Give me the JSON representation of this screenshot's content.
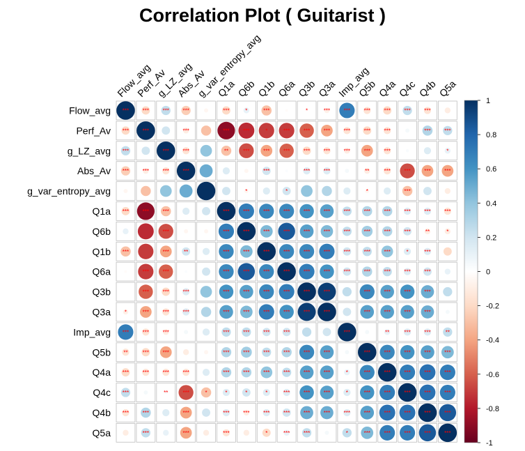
{
  "chart_data": {
    "type": "heatmap",
    "title": "Correlation Plot ( Guitarist )",
    "variables": [
      "Flow_avg",
      "Perf_Av",
      "g_LZ_avg",
      "Abs_Av",
      "g_var_entropy_avg",
      "Q1a",
      "Q6b",
      "Q1b",
      "Q6a",
      "Q3b",
      "Q3a",
      "Imp_avg",
      "Q5b",
      "Q4a",
      "Q4c",
      "Q4b",
      "Q5a"
    ],
    "matrix": [
      [
        1.0,
        -0.2,
        0.25,
        -0.25,
        -0.05,
        -0.2,
        0.1,
        -0.3,
        -0.02,
        0.0,
        -0.08,
        0.7,
        -0.15,
        -0.2,
        0.25,
        -0.15,
        -0.1
      ],
      [
        -0.2,
        1.0,
        0.2,
        -0.1,
        -0.3,
        -0.9,
        -0.75,
        -0.7,
        -0.7,
        -0.6,
        -0.4,
        -0.15,
        -0.2,
        -0.15,
        0.05,
        0.3,
        0.25
      ],
      [
        0.25,
        0.2,
        1.0,
        -0.15,
        0.4,
        -0.3,
        -0.65,
        -0.4,
        -0.6,
        -0.2,
        -0.15,
        -0.1,
        -0.4,
        -0.15,
        0.03,
        0.15,
        0.1
      ],
      [
        -0.25,
        -0.1,
        -0.15,
        1.0,
        0.5,
        0.15,
        -0.05,
        0.2,
        0.02,
        0.15,
        0.15,
        0.05,
        -0.1,
        -0.15,
        -0.65,
        -0.4,
        -0.4
      ],
      [
        -0.05,
        -0.3,
        0.4,
        0.5,
        1.0,
        0.2,
        -0.05,
        0.15,
        0.2,
        0.4,
        0.3,
        0.15,
        -0.05,
        0.15,
        -0.3,
        0.2,
        -0.1
      ],
      [
        -0.2,
        -0.9,
        -0.3,
        0.15,
        0.2,
        1.0,
        0.7,
        0.65,
        0.65,
        0.6,
        0.55,
        0.25,
        0.3,
        0.3,
        0.15,
        0.15,
        -0.15
      ],
      [
        0.1,
        -0.75,
        -0.65,
        -0.05,
        -0.05,
        0.7,
        1.0,
        0.45,
        0.85,
        0.55,
        0.45,
        0.25,
        0.35,
        0.3,
        0.2,
        -0.1,
        -0.1
      ],
      [
        -0.3,
        -0.7,
        -0.4,
        0.2,
        0.15,
        0.65,
        0.45,
        1.0,
        0.65,
        0.65,
        0.7,
        0.2,
        0.25,
        0.4,
        0.15,
        0.15,
        -0.2
      ],
      [
        -0.02,
        -0.7,
        -0.6,
        0.02,
        0.2,
        0.65,
        0.85,
        0.65,
        1.0,
        0.7,
        0.6,
        0.2,
        0.3,
        0.25,
        0.15,
        0.2,
        0.1
      ],
      [
        0.0,
        -0.6,
        -0.2,
        0.15,
        0.4,
        0.6,
        0.55,
        0.65,
        0.7,
        1.0,
        0.95,
        0.25,
        0.65,
        0.55,
        0.6,
        0.5,
        0.25
      ],
      [
        -0.08,
        -0.4,
        -0.15,
        0.15,
        0.3,
        0.55,
        0.45,
        0.7,
        0.6,
        0.95,
        1.0,
        0.2,
        0.55,
        0.55,
        0.55,
        0.5,
        0.05
      ],
      [
        0.7,
        -0.15,
        -0.1,
        0.05,
        0.15,
        0.25,
        0.25,
        0.2,
        0.2,
        0.25,
        0.2,
        1.0,
        0.05,
        0.1,
        0.15,
        0.15,
        0.25
      ],
      [
        -0.15,
        -0.2,
        -0.4,
        -0.1,
        -0.05,
        0.3,
        0.35,
        0.25,
        0.3,
        0.65,
        0.55,
        0.05,
        1.0,
        0.65,
        0.6,
        0.55,
        0.45
      ],
      [
        -0.2,
        -0.15,
        -0.15,
        -0.15,
        0.15,
        0.3,
        0.3,
        0.4,
        0.25,
        0.55,
        0.55,
        0.1,
        0.65,
        1.0,
        0.7,
        0.75,
        0.7
      ],
      [
        0.25,
        0.05,
        0.03,
        -0.65,
        -0.3,
        0.15,
        0.2,
        0.15,
        0.15,
        0.6,
        0.55,
        0.15,
        0.6,
        0.7,
        1.0,
        0.75,
        0.7
      ],
      [
        -0.15,
        0.3,
        0.15,
        -0.4,
        0.2,
        0.15,
        -0.1,
        0.15,
        0.2,
        0.5,
        0.5,
        0.15,
        0.55,
        0.75,
        0.75,
        1.0,
        0.85
      ],
      [
        -0.1,
        0.25,
        0.1,
        -0.4,
        -0.1,
        -0.15,
        -0.1,
        -0.2,
        0.1,
        0.25,
        0.05,
        0.25,
        0.45,
        0.7,
        0.7,
        0.85,
        1.0
      ]
    ],
    "significance": [
      [
        "***",
        "***",
        "***",
        "***",
        "",
        "***",
        "*",
        "***",
        "",
        "*",
        "***",
        "***",
        "***",
        "***",
        "***",
        "***",
        ""
      ],
      [
        "***",
        "***",
        "",
        "***",
        "",
        "***",
        "***",
        "*",
        "***",
        "***",
        "***",
        "***",
        "***",
        "***",
        "",
        "***",
        "***"
      ],
      [
        "***",
        "",
        "***",
        "***",
        "",
        "**",
        "***",
        "***",
        "***",
        "***",
        "***",
        "***",
        "***",
        "***",
        "",
        "",
        "*"
      ],
      [
        "***",
        "***",
        "***",
        "***",
        "",
        "",
        "",
        "***",
        "",
        "***",
        "***",
        "",
        "**",
        "***",
        "***",
        "***",
        "***"
      ],
      [
        "",
        "",
        "",
        "",
        "",
        "",
        "*",
        "",
        "*",
        "",
        "",
        "",
        "*",
        "",
        "***",
        "",
        ""
      ],
      [
        "***",
        "***",
        "***",
        "",
        "",
        "***",
        "***",
        "***",
        "***",
        "***",
        "***",
        "***",
        "***",
        "***",
        "***",
        "***",
        "***"
      ],
      [
        "",
        "",
        "***",
        "",
        "",
        "***",
        "***",
        "***",
        "***",
        "***",
        "***",
        "***",
        "***",
        "***",
        "***",
        "**",
        "*"
      ],
      [
        "***",
        "",
        "***",
        "**",
        "",
        "***",
        "***",
        "***",
        "***",
        "***",
        "***",
        "***",
        "***",
        "***",
        "*",
        "***",
        ""
      ],
      [
        "",
        "***",
        "***",
        "",
        "",
        "***",
        "***",
        "***",
        "***",
        "***",
        "***",
        "***",
        "***",
        "***",
        "***",
        "***",
        ""
      ],
      [
        "",
        "***",
        "***",
        "***",
        "",
        "***",
        "***",
        "***",
        "***",
        "***",
        "***",
        "",
        "***",
        "***",
        "***",
        "***",
        ""
      ],
      [
        "*",
        "***",
        "***",
        "***",
        "",
        "***",
        "***",
        "***",
        "***",
        "***",
        "***",
        "",
        "***",
        "***",
        "***",
        "***",
        ""
      ],
      [
        "***",
        "***",
        "***",
        "",
        "",
        "***",
        "***",
        "***",
        "***",
        "",
        "",
        "***",
        "",
        "**",
        "***",
        "***",
        "**"
      ],
      [
        "**",
        "***",
        "***",
        "",
        "",
        "***",
        "***",
        "***",
        "***",
        "***",
        "***",
        "",
        "***",
        "***",
        "***",
        "***",
        "***"
      ],
      [
        "***",
        "***",
        "***",
        "***",
        "",
        "***",
        "***",
        "***",
        "***",
        "***",
        "***",
        "*",
        "***",
        "***",
        "***",
        "***",
        "***"
      ],
      [
        "***",
        "",
        "**",
        "***",
        "*",
        "*",
        "*",
        "*",
        "***",
        "***",
        "***",
        "*",
        "***",
        "***",
        "***",
        "***",
        "***"
      ],
      [
        "***",
        "***",
        "",
        "***",
        "",
        "***",
        "***",
        "***",
        "***",
        "***",
        "***",
        "***",
        "***",
        "***",
        "***",
        "***",
        "***"
      ],
      [
        "",
        "***",
        "",
        "***",
        "",
        "***",
        "",
        "*",
        "***",
        "***",
        "",
        "*",
        "***",
        "***",
        "***",
        "***",
        "***"
      ]
    ],
    "colorbar_ticks": [
      "1",
      "0.8",
      "0.6",
      "0.4",
      "0.2",
      "0",
      "-0.2",
      "-0.4",
      "-0.6",
      "-0.8",
      "-1"
    ],
    "colorbar_range": [
      -1,
      1
    ],
    "colors": {
      "scale": [
        "#67001F",
        "#B2182B",
        "#D6604D",
        "#F4A582",
        "#FDDBC7",
        "#FFFFFF",
        "#D1E5F0",
        "#92C5DE",
        "#4393C3",
        "#2166AC",
        "#053061"
      ],
      "grid": "#bdbdbd",
      "star": "#ff0000",
      "text": "#000000"
    }
  }
}
